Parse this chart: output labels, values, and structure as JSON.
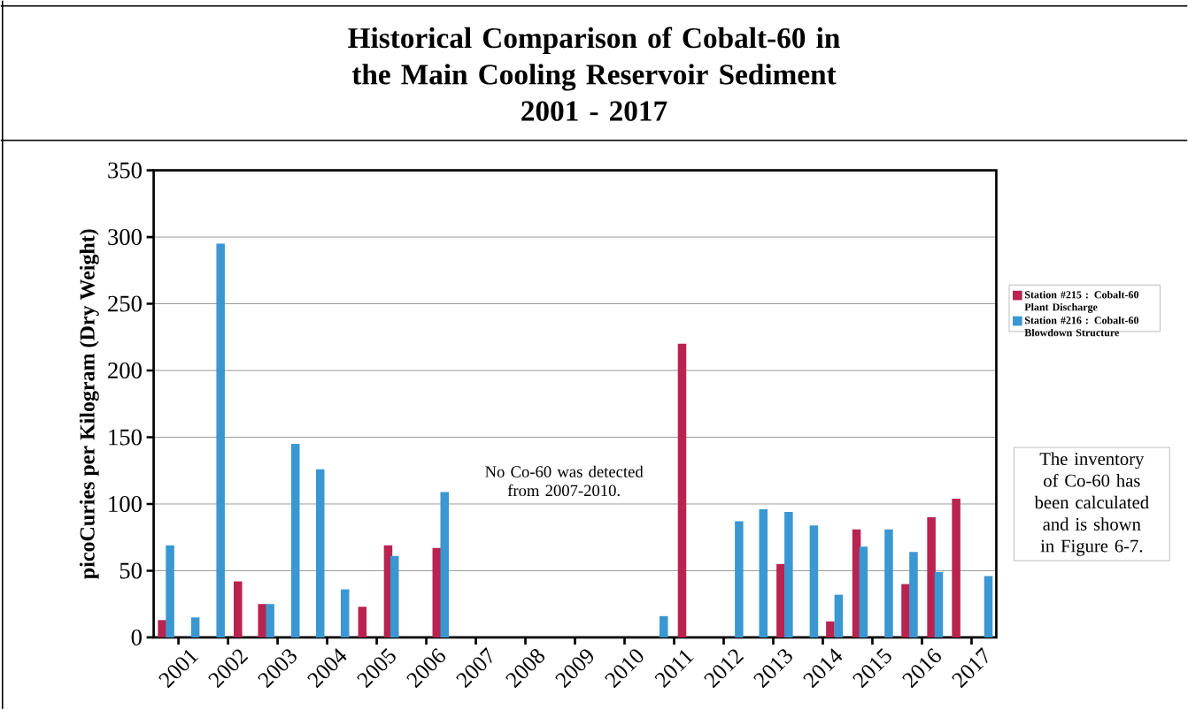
{
  "chart_data": {
    "type": "bar",
    "title": "Historical Comparison of Cobalt-60 in the Main Cooling Reservoir Sediment",
    "subtitle": "2001 - 2017",
    "ylabel": "picoCuries per Kilogram (Dry Weight)",
    "annotations": [
      "No Co-60 was detected from 2007-2010.",
      "The inventory of Co-60 has been calculated and is shown in Figure 6-7."
    ],
    "series": [
      {
        "name": "Station #215 : Cobalt-60 Plant Discharge",
        "color": "#b8234f",
        "x": [
          2000.67,
          2002.2,
          2002.69,
          2004.71,
          2005.23,
          2006.21,
          2011.16,
          2013.15,
          2014.15,
          2014.68,
          2015.67,
          2016.19,
          2016.69
        ],
        "values": [
          13,
          42,
          25,
          23,
          69,
          67,
          220,
          55,
          12,
          81,
          40,
          90,
          104
        ]
      },
      {
        "name": "Station #216 : Cobalt-60 Blowdown Structure",
        "color": "#3a97d2",
        "x": [
          2000.83,
          2001.34,
          2001.85,
          2002.85,
          2003.36,
          2003.86,
          2004.36,
          2005.36,
          2006.37,
          2010.79,
          2012.31,
          2012.8,
          2013.31,
          2013.82,
          2014.32,
          2014.82,
          2015.33,
          2015.83,
          2016.34,
          2017.34
        ],
        "values": [
          69,
          15,
          295,
          25,
          145,
          126,
          36,
          61,
          109,
          16,
          87,
          96,
          94,
          84,
          32,
          68,
          81,
          64,
          49,
          46
        ]
      }
    ],
    "xlim": [
      2000.5,
      2017.5
    ],
    "xticks": [
      2001,
      2002,
      2003,
      2004,
      2005,
      2006,
      2007,
      2008,
      2009,
      2010,
      2011,
      2012,
      2013,
      2014,
      2015,
      2016,
      2017
    ],
    "ylim": [
      0,
      350
    ],
    "yticks": [
      0,
      50,
      100,
      150,
      200,
      250,
      300,
      350
    ],
    "grid": "y",
    "legend": "right"
  }
}
